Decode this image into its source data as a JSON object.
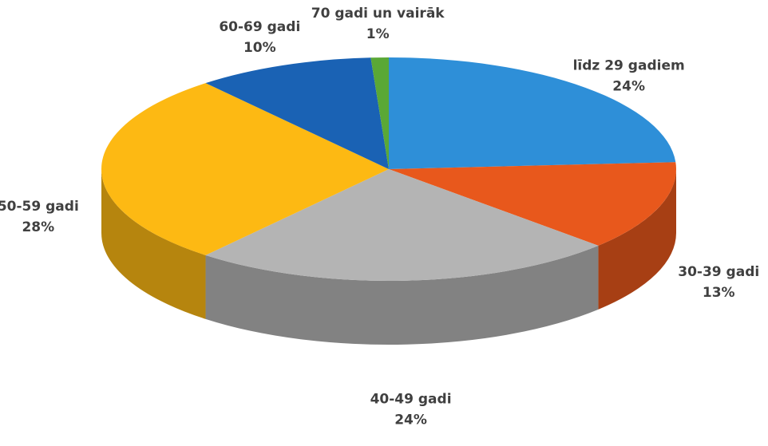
{
  "chart_data": {
    "type": "pie3d",
    "categories": [
      "līdz 29 gadiem",
      "30-39 gadi",
      "40-49 gadi",
      "50-59 gadi",
      "60-69 gadi",
      "70 gadi un vairāk"
    ],
    "values": [
      24,
      13,
      24,
      28,
      10,
      1
    ],
    "value_labels": [
      "24%",
      "13%",
      "24%",
      "28%",
      "10%",
      "1%"
    ],
    "colors": [
      "#2e8fd8",
      "#e8581c",
      "#b4b4b4",
      "#fdb913",
      "#1a62b4",
      "#5aa836"
    ]
  }
}
